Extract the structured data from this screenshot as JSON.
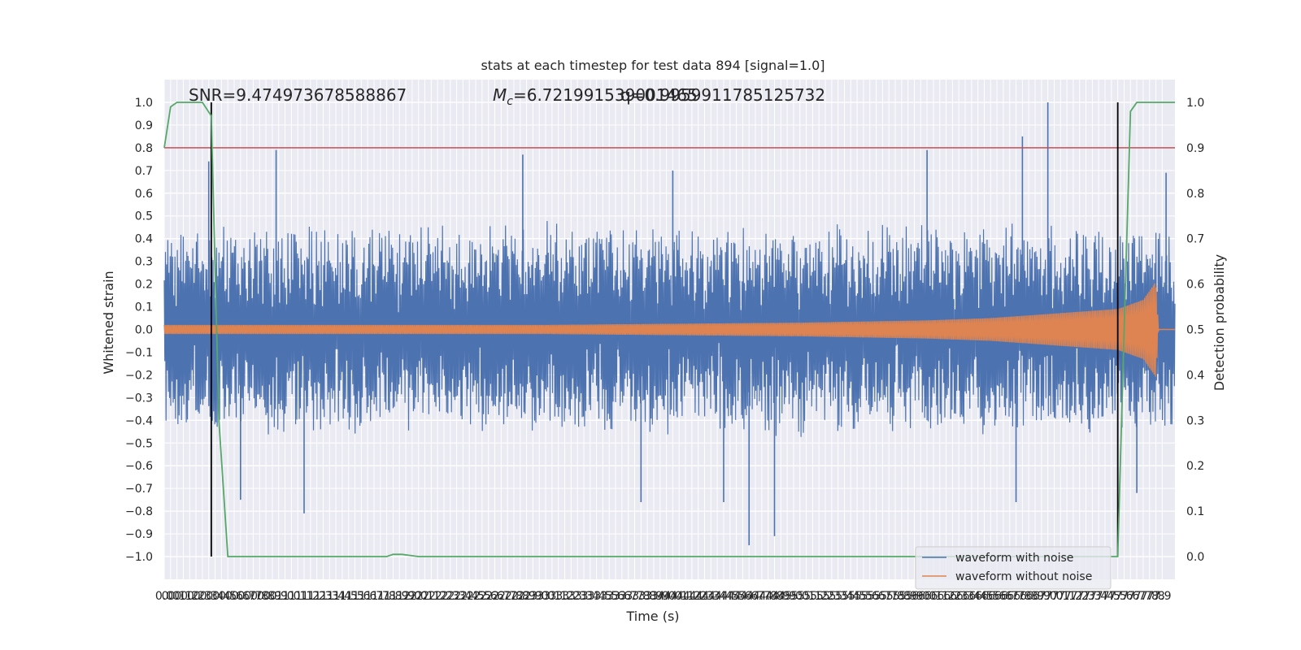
{
  "chart_data": {
    "type": "line",
    "title": "stats at each timestep for test data 894 [signal=1.0]",
    "xlabel": "Time (s)",
    "ylabel": "Whitened strain",
    "ylabel_right": "Detection probability",
    "xlim": [
      0.0,
      7.95
    ],
    "ylim": [
      -1.1,
      1.1
    ],
    "ylim_right": [
      -0.05,
      1.05
    ],
    "x_tick_step": 0.05,
    "x_tick_labels": [
      "0.0",
      "0.0",
      "0.1",
      "0.1",
      "0.2",
      "0.2",
      "0.3",
      "0.3",
      "0.4",
      "0.4",
      "0.5",
      "0.6",
      "0.6",
      "0.7",
      "0.7",
      "0.8",
      "0.8",
      "0.9",
      "0.9",
      "1.0",
      "1.0",
      "1.1",
      "1.1",
      "1.2",
      "1.2",
      "1.3",
      "1.3",
      "1.4",
      "1.4",
      "1.5",
      "1.5",
      "1.6",
      "1.6",
      "1.7",
      "1.7",
      "1.8",
      "1.8",
      "1.9",
      "1.9",
      "2.0",
      "2.0",
      "2.1",
      "2.1",
      "2.2",
      "2.2",
      "2.3",
      "2.3",
      "2.4",
      "2.4",
      "2.5",
      "2.5",
      "2.6",
      "2.6",
      "2.7",
      "2.7",
      "2.8",
      "2.8",
      "2.9",
      "2.9",
      "3.0",
      "3.0",
      "3.1",
      "3.1",
      "3.2",
      "3.2",
      "3.3",
      "3.3",
      "3.4",
      "3.4",
      "3.5",
      "3.5",
      "3.6",
      "3.6",
      "3.7",
      "3.7",
      "3.8",
      "3.8",
      "3.9",
      "3.9",
      "4.0",
      "4.0",
      "4.1",
      "4.1",
      "4.2",
      "4.2",
      "4.3",
      "4.3",
      "4.4",
      "4.4",
      "4.5",
      "4.5",
      "4.6",
      "4.6",
      "4.7",
      "4.7",
      "4.8",
      "4.8",
      "4.9",
      "4.9",
      "5.0",
      "5.0",
      "5.1",
      "5.1",
      "5.2",
      "5.2",
      "5.3",
      "5.3",
      "5.4",
      "5.4",
      "5.5",
      "5.5",
      "5.6",
      "5.6",
      "5.7",
      "5.7",
      "5.8",
      "5.8",
      "5.9",
      "5.9",
      "6.0",
      "6.0",
      "6.1",
      "6.1",
      "6.2",
      "6.2",
      "6.3",
      "6.3",
      "6.4",
      "6.4",
      "6.5",
      "6.5",
      "6.6",
      "6.6",
      "6.7",
      "6.7",
      "6.8",
      "6.8",
      "6.9",
      "6.9",
      "7.0",
      "7.0",
      "7.1",
      "7.1",
      "7.2",
      "7.2",
      "7.3",
      "7.3",
      "7.4",
      "7.4",
      "7.5",
      "7.5",
      "7.6",
      "7.6",
      "7.7",
      "7.7",
      "7.8",
      "7.8",
      "7.9"
    ],
    "y_ticks_left": [
      "1.0",
      "0.9",
      "0.8",
      "0.7",
      "0.6",
      "0.5",
      "0.4",
      "0.3",
      "0.2",
      "0.1",
      "0.0",
      "−0.1",
      "−0.2",
      "−0.3",
      "−0.4",
      "−0.5",
      "−0.6",
      "−0.7",
      "−0.8",
      "−0.9",
      "−1.0"
    ],
    "y_ticks_right": [
      "1.0",
      "0.9",
      "0.8",
      "0.7",
      "0.6",
      "0.5",
      "0.4",
      "0.3",
      "0.2",
      "0.1",
      "0.0"
    ],
    "annotations": {
      "snr": "SNR=9.474973678588867",
      "mc_symbol": "M",
      "mc_sub": "c",
      "mc_value": "=6.721991539001465",
      "q_value": "q=0.9959911785125732"
    },
    "threshold_right": 0.9,
    "vlines_x": [
      0.37,
      7.5
    ],
    "legend": {
      "placement": "lower-right",
      "entries": [
        "waveform with noise",
        "waveform without noise"
      ]
    },
    "series": [
      {
        "name": "waveform with noise",
        "color": "#4c72b0",
        "envelope": [
          [
            0.0,
            0.42
          ],
          [
            1.0,
            0.42
          ],
          [
            2.0,
            0.42
          ],
          [
            3.0,
            0.42
          ],
          [
            4.0,
            0.42
          ],
          [
            5.0,
            0.42
          ],
          [
            6.0,
            0.42
          ],
          [
            7.0,
            0.42
          ],
          [
            7.95,
            0.42
          ]
        ],
        "spikes": [
          [
            0.35,
            0.74
          ],
          [
            0.88,
            0.79
          ],
          [
            2.82,
            0.77
          ],
          [
            4.0,
            0.7
          ],
          [
            6.0,
            0.79
          ],
          [
            6.75,
            0.85
          ],
          [
            6.95,
            1.0
          ],
          [
            7.88,
            0.69
          ],
          [
            4.6,
            -0.95
          ],
          [
            4.8,
            -0.91
          ],
          [
            1.1,
            -0.81
          ],
          [
            0.6,
            -0.75
          ],
          [
            3.75,
            -0.76
          ],
          [
            4.4,
            -0.76
          ],
          [
            6.7,
            -0.76
          ],
          [
            7.65,
            -0.72
          ]
        ]
      },
      {
        "name": "waveform without noise",
        "color": "#dd8452",
        "envelope": [
          [
            0.0,
            0.02
          ],
          [
            3.0,
            0.02
          ],
          [
            5.0,
            0.03
          ],
          [
            6.0,
            0.04
          ],
          [
            6.5,
            0.05
          ],
          [
            7.0,
            0.07
          ],
          [
            7.5,
            0.09
          ],
          [
            7.7,
            0.13
          ],
          [
            7.8,
            0.21
          ],
          [
            7.82,
            0.0
          ],
          [
            7.95,
            0.0
          ]
        ]
      },
      {
        "name": "",
        "color": "#55a868",
        "axis": "right",
        "x": [
          0.0,
          0.05,
          0.1,
          0.3,
          0.37,
          0.43,
          0.5,
          1.0,
          1.5,
          1.75,
          1.8,
          1.87,
          2.0,
          3.0,
          4.0,
          5.0,
          6.0,
          7.0,
          7.5,
          7.55,
          7.6,
          7.65,
          7.95
        ],
        "values": [
          0.9,
          0.99,
          1.0,
          1.0,
          0.97,
          0.3,
          0.0,
          0.0,
          0.0,
          0.0,
          0.005,
          0.005,
          0.0,
          0.0,
          0.0,
          0.0,
          0.0,
          0.0,
          0.0,
          0.5,
          0.98,
          1.0,
          1.0
        ]
      }
    ]
  }
}
